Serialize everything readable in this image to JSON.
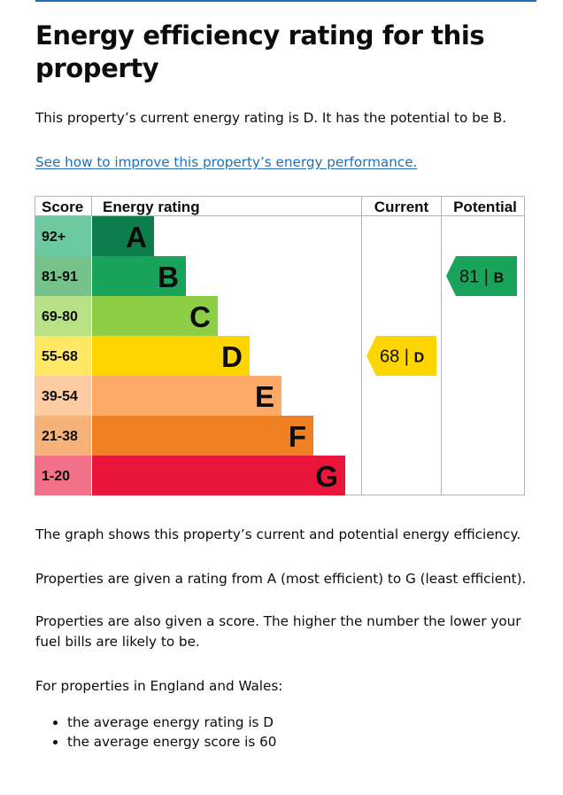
{
  "page": {
    "title": "Energy efficiency rating for this property",
    "intro": "This property’s current energy rating is D. It has the potential to be B.",
    "link_text": "See how to improve this property’s energy performance.",
    "graph_note": "The graph shows this property’s current and potential energy efficiency.",
    "rating_note": "Properties are given a rating from A (most efficient) to G (least efficient).",
    "score_note": "Properties are also given a score. The higher the number the lower your fuel bills are likely to be.",
    "regional_heading": "For properties in England and Wales:",
    "averages": [
      "the average energy rating is D",
      "the average energy score is 60"
    ]
  },
  "chart_data": {
    "type": "bar",
    "headers": {
      "score": "Score",
      "rating": "Energy rating",
      "current": "Current",
      "potential": "Potential"
    },
    "bands": [
      {
        "letter": "A",
        "range": "92+",
        "color": "#0c7d4b"
      },
      {
        "letter": "B",
        "range": "81-91",
        "color": "#1aa35a"
      },
      {
        "letter": "C",
        "range": "69-80",
        "color": "#8dce46"
      },
      {
        "letter": "D",
        "range": "55-68",
        "color": "#ffd500"
      },
      {
        "letter": "E",
        "range": "39-54",
        "color": "#fcaa65"
      },
      {
        "letter": "F",
        "range": "21-38",
        "color": "#ef8023"
      },
      {
        "letter": "G",
        "range": "1-20",
        "color": "#e9153b"
      }
    ],
    "score_cell_colors": [
      "#6dc9a0",
      "#75c38b",
      "#b8e186",
      "#ffe866",
      "#fdcca2",
      "#f7b27a",
      "#f27188"
    ],
    "current": {
      "score": 68,
      "letter": "D",
      "color": "#ffd500"
    },
    "potential": {
      "score": 81,
      "letter": "B",
      "color": "#1aa35a"
    }
  }
}
